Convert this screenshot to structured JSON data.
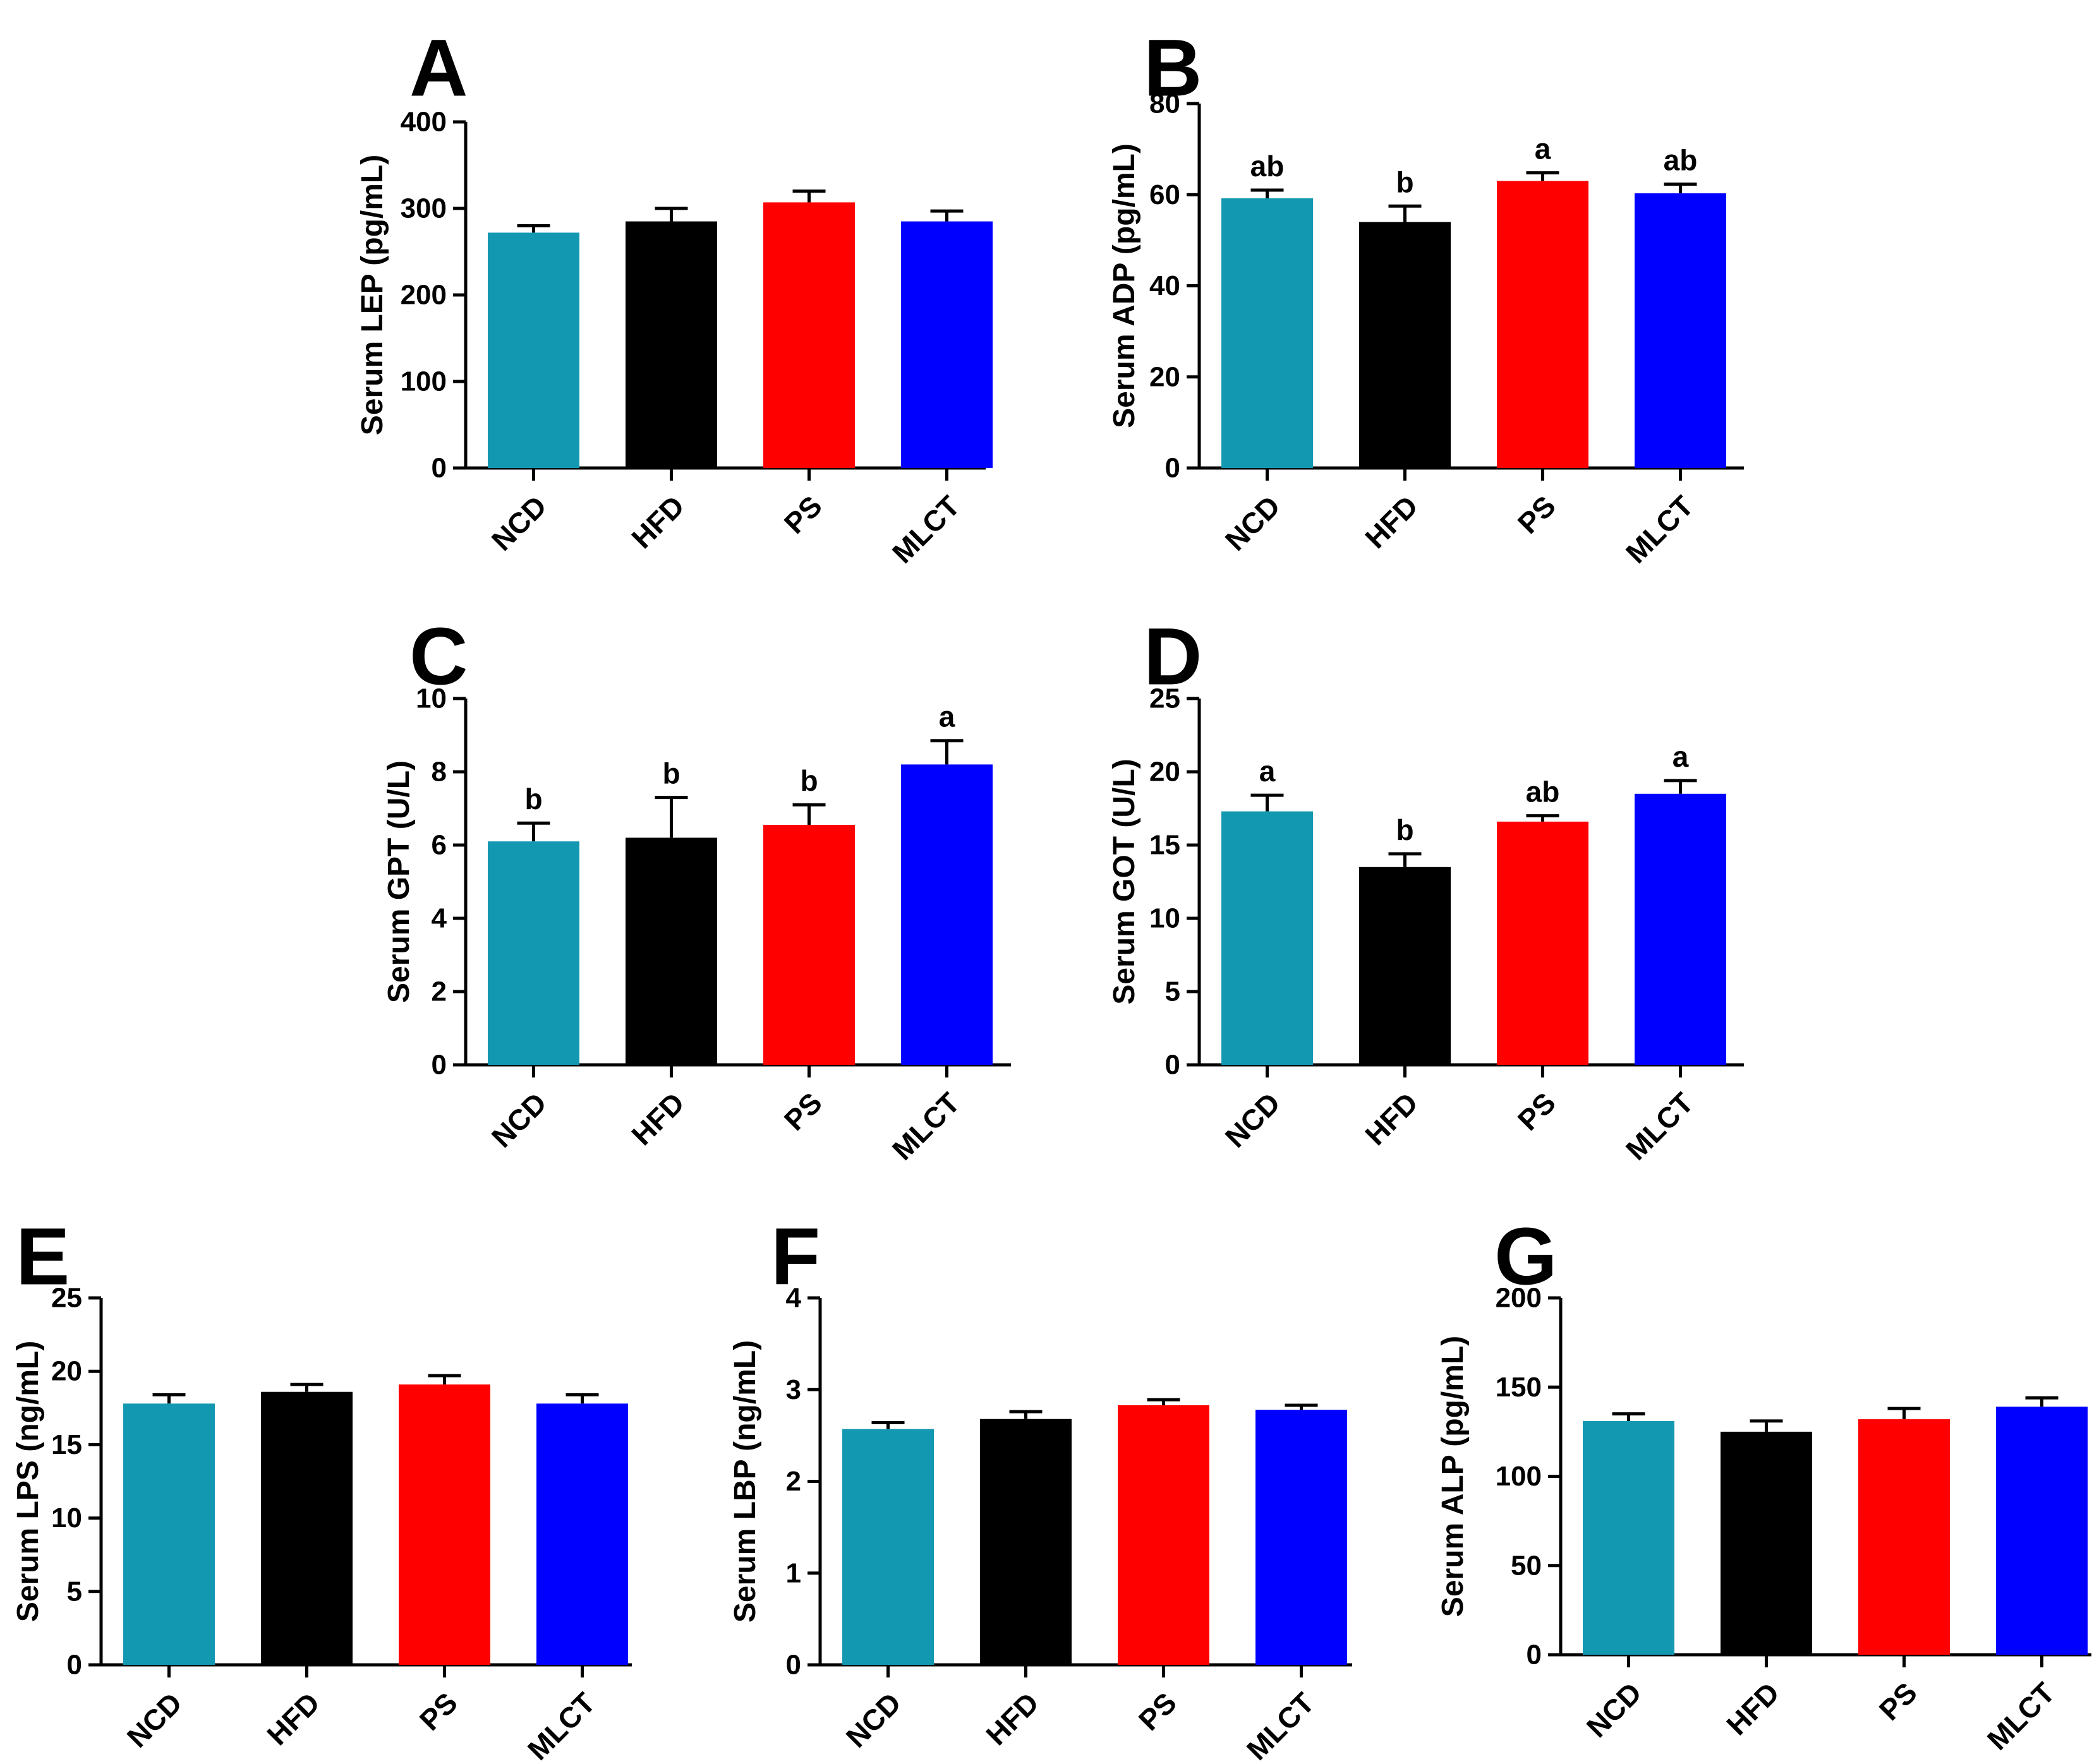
{
  "figure": {
    "group_colors": {
      "NCD": "#1398B2",
      "HFD": "#000000",
      "PS": "#FF0000",
      "MLCT": "#0000FF"
    }
  },
  "chart_data": [
    {
      "id": "A",
      "type": "bar",
      "letter": "A",
      "categories": [
        "NCD",
        "HFD",
        "PS",
        "MLCT"
      ],
      "values": [
        272,
        285,
        307,
        285
      ],
      "errors": [
        8,
        15,
        13,
        12
      ],
      "sig": [
        "",
        "",
        "",
        ""
      ],
      "ylabel": "Serum LEP (pg/mL)",
      "ylim": [
        0,
        400
      ],
      "yticks": [
        0,
        100,
        200,
        300,
        400
      ]
    },
    {
      "id": "B",
      "type": "bar",
      "letter": "B",
      "categories": [
        "NCD",
        "HFD",
        "PS",
        "MLCT"
      ],
      "values": [
        59.2,
        54,
        63,
        60.3
      ],
      "errors": [
        1.8,
        3.5,
        1.8,
        2
      ],
      "sig": [
        "ab",
        "b",
        "a",
        "ab"
      ],
      "ylabel": "Serum ADP (pg/mL)",
      "ylim": [
        0,
        80
      ],
      "yticks": [
        0,
        20,
        40,
        60,
        80
      ]
    },
    {
      "id": "C",
      "type": "bar",
      "letter": "C",
      "categories": [
        "NCD",
        "HFD",
        "PS",
        "MLCT"
      ],
      "values": [
        6.1,
        6.2,
        6.55,
        8.2
      ],
      "errors": [
        0.5,
        1.1,
        0.55,
        0.65
      ],
      "sig": [
        "b",
        "b",
        "b",
        "a"
      ],
      "ylabel": "Serum GPT (U/L)",
      "ylim": [
        0,
        10
      ],
      "yticks": [
        0,
        2,
        4,
        6,
        8,
        10
      ]
    },
    {
      "id": "D",
      "type": "bar",
      "letter": "D",
      "categories": [
        "NCD",
        "HFD",
        "PS",
        "MLCT"
      ],
      "values": [
        17.3,
        13.5,
        16.6,
        18.5
      ],
      "errors": [
        1.1,
        0.9,
        0.4,
        0.9
      ],
      "sig": [
        "a",
        "b",
        "ab",
        "a"
      ],
      "ylabel": "Serum GOT (U/L)",
      "ylim": [
        0,
        25
      ],
      "yticks": [
        0,
        5,
        10,
        15,
        20,
        25
      ]
    },
    {
      "id": "E",
      "type": "bar",
      "letter": "E",
      "categories": [
        "NCD",
        "HFD",
        "PS",
        "MLCT"
      ],
      "values": [
        17.8,
        18.6,
        19.1,
        17.8
      ],
      "errors": [
        0.6,
        0.5,
        0.6,
        0.6
      ],
      "sig": [
        "",
        "",
        "",
        ""
      ],
      "ylabel": "Serum LPS (ng/mL)",
      "ylim": [
        0,
        25
      ],
      "yticks": [
        0,
        5,
        10,
        15,
        20,
        25
      ]
    },
    {
      "id": "F",
      "type": "bar",
      "letter": "F",
      "categories": [
        "NCD",
        "HFD",
        "PS",
        "MLCT"
      ],
      "values": [
        2.57,
        2.68,
        2.83,
        2.78
      ],
      "errors": [
        0.07,
        0.08,
        0.06,
        0.05
      ],
      "sig": [
        "",
        "",
        "",
        ""
      ],
      "ylabel": "Serum LBP (ng/mL)",
      "ylim": [
        0,
        4
      ],
      "yticks": [
        0,
        1,
        2,
        3,
        4
      ]
    },
    {
      "id": "G",
      "type": "bar",
      "letter": "G",
      "categories": [
        "NCD",
        "HFD",
        "PS",
        "MLCT"
      ],
      "values": [
        131,
        125,
        132,
        139
      ],
      "errors": [
        4,
        6,
        6,
        5
      ],
      "sig": [
        "",
        "",
        "",
        ""
      ],
      "ylabel": "Serum ALP (pg/mL)",
      "ylim": [
        0,
        200
      ],
      "yticks": [
        0,
        50,
        100,
        150,
        200
      ]
    }
  ]
}
